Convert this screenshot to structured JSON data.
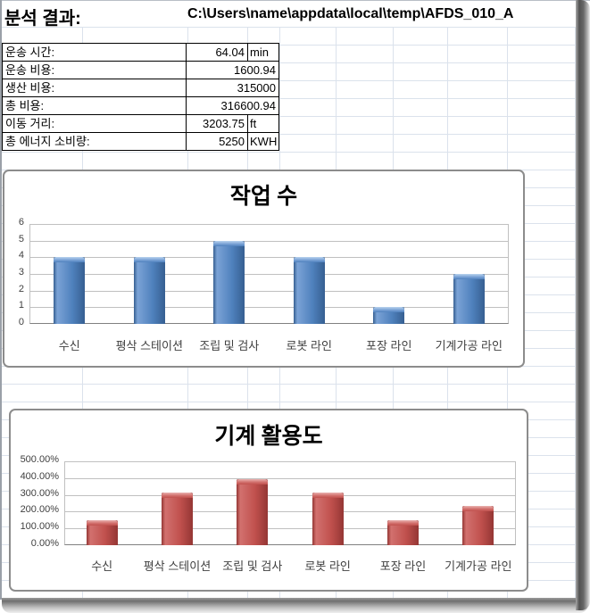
{
  "header": {
    "title": "분석 결과:",
    "file_path": "C:\\Users\\name\\appdata\\local\\temp\\AFDS_010_A"
  },
  "results": {
    "rows": [
      {
        "label": "운송 시간:",
        "value": "64.04",
        "unit": "min"
      },
      {
        "label": "운송 비용:",
        "value": "1600.94",
        "unit": ""
      },
      {
        "label": "생산 비용:",
        "value": "315000",
        "unit": ""
      },
      {
        "label": "총 비용:",
        "value": "316600.94",
        "unit": ""
      },
      {
        "label": "이동 거리:",
        "value": "3203.75",
        "unit": "ft"
      },
      {
        "label": "총 에너지 소비량:",
        "value": "5250",
        "unit": "KWH"
      }
    ]
  },
  "chart_data": [
    {
      "type": "bar",
      "title": "작업 수",
      "categories": [
        "수신",
        "평삭 스테이션",
        "조립 및 검사",
        "로봇 라인",
        "포장 라인",
        "기계가공 라인"
      ],
      "values": [
        4,
        4,
        5,
        4,
        1,
        3
      ],
      "ylim": [
        0,
        6
      ],
      "ytick_labels": [
        "0",
        "1",
        "2",
        "3",
        "4",
        "5",
        "6"
      ],
      "grid": true,
      "legend": "none",
      "colors": {
        "base": "#4f81bd",
        "light": "#7ba3d6",
        "lighter": "#b9d3ee",
        "dark": "#365f91"
      }
    },
    {
      "type": "bar",
      "title": "기계 활용도",
      "categories": [
        "수신",
        "평삭 스테이션",
        "조립 및 검사",
        "로봇 라인",
        "포장 라인",
        "기계가공 라인"
      ],
      "values": [
        150,
        315,
        395,
        315,
        150,
        235
      ],
      "unit": "%",
      "ylim": [
        0,
        500
      ],
      "ytick_labels": [
        "0.00%",
        "100.00%",
        "200.00%",
        "300.00%",
        "400.00%",
        "500.00%"
      ],
      "grid": true,
      "legend": "none",
      "colors": {
        "base": "#c0504d",
        "light": "#d2716e",
        "lighter": "#eab3b1",
        "dark": "#943634"
      }
    }
  ]
}
